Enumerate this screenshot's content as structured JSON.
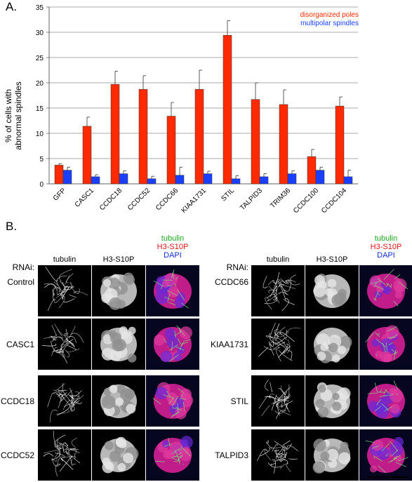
{
  "panel_a_label": "A.",
  "panel_b_label": "B.",
  "chart_data": {
    "type": "bar",
    "categories": [
      "GFP",
      "CASC1",
      "CCDC18",
      "CCDC52",
      "CCDC66",
      "KIAA1731",
      "STIL",
      "TALPID3",
      "TRIM36",
      "CCDC100",
      "CCDC104"
    ],
    "series": [
      {
        "name": "disorganized poles",
        "color": "#ff2a00",
        "values": [
          3.7,
          11.4,
          19.7,
          18.7,
          13.4,
          18.7,
          29.4,
          16.7,
          15.7,
          5.4,
          15.4
        ],
        "errors": [
          0.3,
          1.8,
          2.6,
          2.7,
          2.7,
          3.8,
          2.9,
          3.3,
          2.9,
          1.4,
          1.8
        ]
      },
      {
        "name": "multipolar spindles",
        "color": "#1a3fff",
        "values": [
          2.7,
          1.4,
          2.0,
          1.0,
          1.7,
          2.0,
          1.0,
          1.4,
          2.0,
          2.7,
          1.4
        ],
        "errors": [
          0.6,
          0.4,
          0.6,
          0.5,
          1.6,
          0.5,
          0.6,
          0.6,
          0.6,
          0.6,
          1.3
        ]
      }
    ],
    "ylabel": "% of cells with\nabnormal spindles",
    "ylim": [
      0,
      35
    ],
    "yticks": [
      0,
      5,
      10,
      15,
      20,
      25,
      30,
      35
    ],
    "grid": true,
    "legend": "top-right"
  },
  "panel_b": {
    "columns": [
      "tubulin",
      "H3-S10P"
    ],
    "merge_labels": [
      {
        "text": "tubulin",
        "color": "#1fa81f"
      },
      {
        "text": "H3-S10P",
        "color": "#e0131a"
      },
      {
        "text": "DAPI",
        "color": "#1a2ad6"
      }
    ],
    "rnai_label": "RNAi:",
    "left_rows": [
      "Control",
      "CASC1",
      "CCDC18",
      "CCDC52"
    ],
    "right_rows": [
      "CCDC66",
      "KIAA1731",
      "STIL",
      "TALPID3"
    ]
  }
}
